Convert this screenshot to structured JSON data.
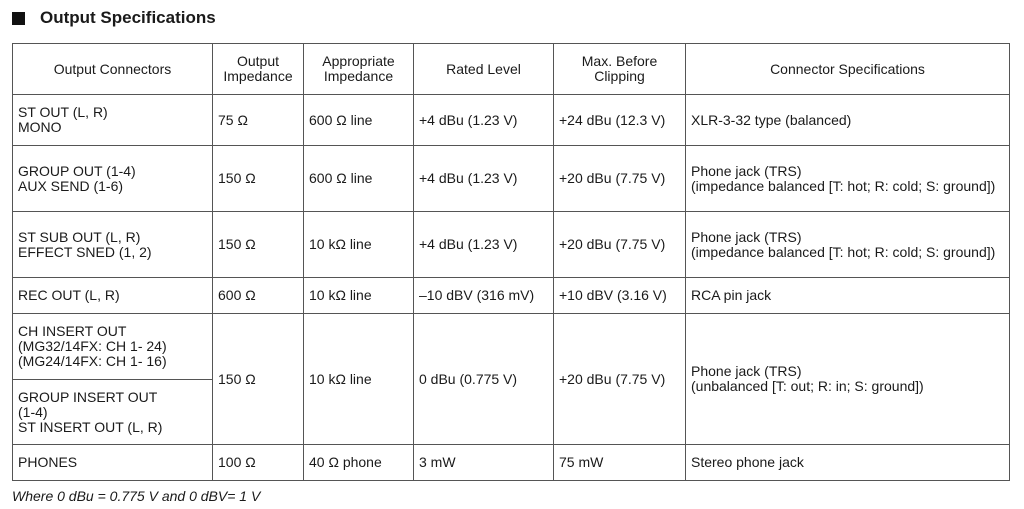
{
  "title": "Output Specifications",
  "headers": [
    "Output Connectors",
    "Output\nImpedance",
    "Appropriate\nImpedance",
    "Rated Level",
    "Max. Before\nClipping",
    "Connector Specifications"
  ],
  "rows": [
    [
      "ST OUT (L, R)\nMONO",
      "75 Ω",
      "600 Ω line",
      "+4 dBu (1.23 V)",
      "+24 dBu (12.3 V)",
      "XLR-3-32 type (balanced)"
    ],
    [
      "GROUP OUT (1-4)\nAUX SEND (1-6)",
      "150 Ω",
      "600 Ω line",
      "+4 dBu (1.23 V)",
      "+20 dBu (7.75 V)",
      "Phone jack (TRS)\n(impedance balanced [T: hot; R: cold; S: ground])"
    ],
    [
      "ST SUB OUT (L, R)\nEFFECT SNED (1, 2)",
      "150 Ω",
      "10 kΩ line",
      "+4 dBu (1.23 V)",
      "+20 dBu (7.75 V)",
      "Phone jack (TRS)\n(impedance balanced [T: hot; R: cold; S: ground])"
    ],
    [
      "REC OUT (L, R)",
      "600 Ω",
      "10 kΩ line",
      "–10 dBV (316 mV)",
      "+10 dBV (3.16 V)",
      "RCA pin jack"
    ],
    [
      "CH INSERT OUT\n(MG32/14FX: CH 1- 24)\n(MG24/14FX: CH 1- 16)",
      "150 Ω",
      "10 kΩ line",
      "0 dBu (0.775 V)",
      "+20 dBu (7.75 V)",
      "Phone jack (TRS)\n(unbalanced [T: out; R: in; S: ground])"
    ],
    [
      "GROUP INSERT OUT\n(1-4)\nST INSERT OUT (L, R)"
    ],
    [
      "PHONES",
      "100 Ω",
      "40 Ω phone",
      "3 mW",
      "75 mW",
      "Stereo phone jack"
    ]
  ],
  "footnote": "Where 0 dBu = 0.775 V and 0 dBV= 1 V"
}
